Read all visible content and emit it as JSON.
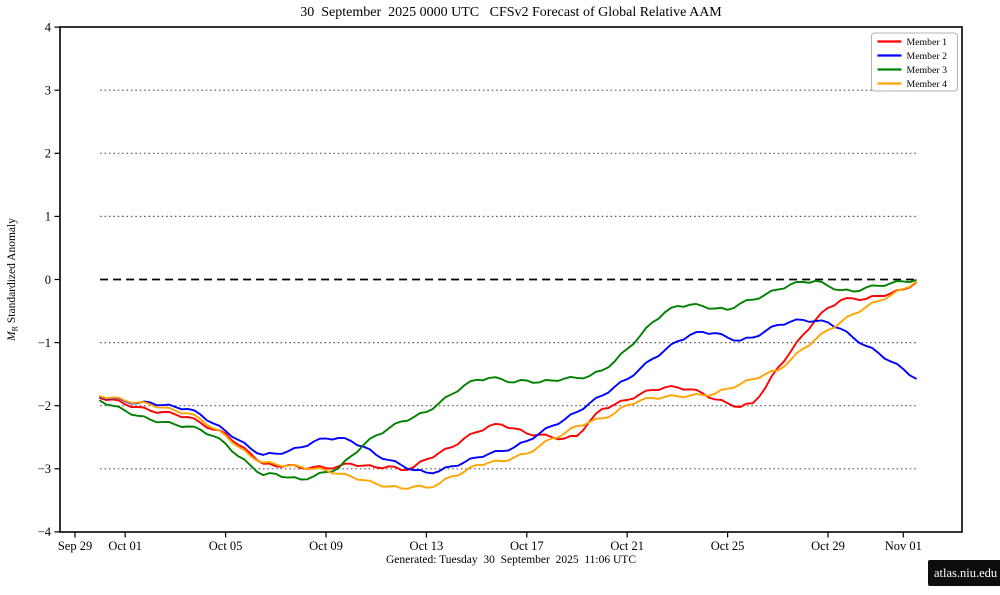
{
  "footer": "Generated: Tuesday  30  September  2025  11:06 UTC",
  "watermark": "atlas.niu.edu",
  "colors": {
    "member1": "#ff0000",
    "member2": "#0000ff",
    "member3": "#008000",
    "member4": "#ffa500",
    "grid": "#5c5c5c",
    "zero_line": "#000000",
    "frame": "#000000",
    "watermark_bg": "#0d0d0d"
  },
  "chart_data": {
    "type": "line",
    "title": "30  September  2025 0000 UTC   CFSv2 Forecast of Global Relative AAM",
    "xlabel": "",
    "ylabel": "M_R Standardized Anomaly",
    "ylim": [
      -4,
      4
    ],
    "grid": "horizontal dotted at ±1,±2,±3; dashed black at 0; spanning data range only",
    "legend_position": "upper right",
    "y_ticks": [
      4,
      3,
      2,
      1,
      0,
      -1,
      -2,
      -3,
      -4
    ],
    "x_ticks": [
      {
        "label": "Sep 29",
        "day": 0
      },
      {
        "label": "Oct 01",
        "day": 2
      },
      {
        "label": "Oct 05",
        "day": 6
      },
      {
        "label": "Oct 09",
        "day": 10
      },
      {
        "label": "Oct 13",
        "day": 14
      },
      {
        "label": "Oct 17",
        "day": 18
      },
      {
        "label": "Oct 21",
        "day": 22
      },
      {
        "label": "Oct 25",
        "day": 26
      },
      {
        "label": "Oct 29",
        "day": 30
      },
      {
        "label": "Nov 01",
        "day": 33
      }
    ],
    "x_days": [
      1,
      1.5,
      2,
      2.5,
      3,
      3.5,
      4,
      4.5,
      5,
      5.5,
      6,
      6.5,
      7,
      7.5,
      8,
      8.5,
      9,
      9.5,
      10,
      10.5,
      11,
      11.5,
      12,
      12.5,
      13,
      13.5,
      14,
      14.5,
      15,
      15.5,
      16,
      16.5,
      17,
      17.5,
      18,
      18.5,
      19,
      19.5,
      20,
      20.5,
      21,
      21.5,
      22,
      22.5,
      23,
      23.5,
      24,
      24.5,
      25,
      25.5,
      26,
      26.5,
      27,
      27.5,
      28,
      28.5,
      29,
      29.5,
      30,
      30.5,
      31,
      31.5,
      32,
      32.5,
      33,
      33.5
    ],
    "dotted_gridline_values": [
      3,
      2,
      1,
      -1,
      -2,
      -3
    ],
    "zero_dashed_line": 0,
    "series": [
      {
        "name": "Member 1",
        "color": "#ff0000",
        "values": [
          -1.88,
          -1.9,
          -1.98,
          -2.02,
          -2.08,
          -2.1,
          -2.14,
          -2.18,
          -2.27,
          -2.38,
          -2.44,
          -2.62,
          -2.76,
          -2.92,
          -2.96,
          -2.94,
          -2.99,
          -2.97,
          -2.99,
          -2.96,
          -2.92,
          -2.95,
          -2.98,
          -2.96,
          -3.02,
          -2.97,
          -2.85,
          -2.75,
          -2.66,
          -2.52,
          -2.42,
          -2.32,
          -2.3,
          -2.36,
          -2.44,
          -2.46,
          -2.5,
          -2.52,
          -2.48,
          -2.25,
          -2.05,
          -1.98,
          -1.91,
          -1.82,
          -1.75,
          -1.71,
          -1.71,
          -1.74,
          -1.8,
          -1.9,
          -1.96,
          -2.02,
          -1.96,
          -1.72,
          -1.4,
          -1.15,
          -0.88,
          -0.64,
          -0.45,
          -0.33,
          -0.3,
          -0.31,
          -0.26,
          -0.22,
          -0.16,
          -0.05
        ]
      },
      {
        "name": "Member 2",
        "color": "#0000ff",
        "values": [
          -1.86,
          -1.88,
          -1.93,
          -1.96,
          -1.95,
          -1.99,
          -2.02,
          -2.05,
          -2.14,
          -2.28,
          -2.4,
          -2.54,
          -2.68,
          -2.78,
          -2.76,
          -2.72,
          -2.66,
          -2.57,
          -2.52,
          -2.51,
          -2.56,
          -2.65,
          -2.78,
          -2.86,
          -2.94,
          -3.02,
          -3.06,
          -3.04,
          -2.96,
          -2.9,
          -2.82,
          -2.76,
          -2.72,
          -2.66,
          -2.56,
          -2.44,
          -2.32,
          -2.22,
          -2.1,
          -1.96,
          -1.84,
          -1.7,
          -1.58,
          -1.42,
          -1.26,
          -1.12,
          -0.98,
          -0.88,
          -0.83,
          -0.85,
          -0.92,
          -0.97,
          -0.92,
          -0.82,
          -0.72,
          -0.67,
          -0.64,
          -0.66,
          -0.68,
          -0.78,
          -0.92,
          -1.05,
          -1.16,
          -1.3,
          -1.42,
          -1.57
        ]
      },
      {
        "name": "Member 3",
        "color": "#008000",
        "values": [
          -1.92,
          -2.0,
          -2.08,
          -2.16,
          -2.22,
          -2.26,
          -2.3,
          -2.33,
          -2.38,
          -2.48,
          -2.6,
          -2.8,
          -2.95,
          -3.1,
          -3.08,
          -3.14,
          -3.17,
          -3.12,
          -3.05,
          -2.99,
          -2.8,
          -2.62,
          -2.47,
          -2.36,
          -2.25,
          -2.18,
          -2.1,
          -1.96,
          -1.82,
          -1.68,
          -1.59,
          -1.56,
          -1.58,
          -1.63,
          -1.6,
          -1.63,
          -1.6,
          -1.57,
          -1.56,
          -1.53,
          -1.44,
          -1.3,
          -1.1,
          -0.9,
          -0.68,
          -0.52,
          -0.42,
          -0.4,
          -0.42,
          -0.46,
          -0.48,
          -0.38,
          -0.32,
          -0.24,
          -0.16,
          -0.08,
          -0.04,
          -0.02,
          -0.1,
          -0.17,
          -0.19,
          -0.13,
          -0.1,
          -0.06,
          -0.03,
          -0.01
        ]
      },
      {
        "name": "Member 4",
        "color": "#ffa500",
        "values": [
          -1.85,
          -1.87,
          -1.92,
          -1.95,
          -1.98,
          -2.03,
          -2.08,
          -2.12,
          -2.21,
          -2.36,
          -2.47,
          -2.65,
          -2.8,
          -2.9,
          -2.93,
          -2.95,
          -2.97,
          -3.0,
          -3.02,
          -3.08,
          -3.12,
          -3.18,
          -3.24,
          -3.28,
          -3.31,
          -3.28,
          -3.3,
          -3.24,
          -3.12,
          -3.05,
          -2.94,
          -2.9,
          -2.88,
          -2.82,
          -2.76,
          -2.64,
          -2.52,
          -2.44,
          -2.32,
          -2.26,
          -2.2,
          -2.12,
          -1.99,
          -1.92,
          -1.88,
          -1.86,
          -1.85,
          -1.84,
          -1.83,
          -1.81,
          -1.73,
          -1.66,
          -1.58,
          -1.5,
          -1.44,
          -1.28,
          -1.1,
          -0.95,
          -0.8,
          -0.68,
          -0.55,
          -0.44,
          -0.34,
          -0.25,
          -0.15,
          -0.04
        ]
      }
    ]
  }
}
